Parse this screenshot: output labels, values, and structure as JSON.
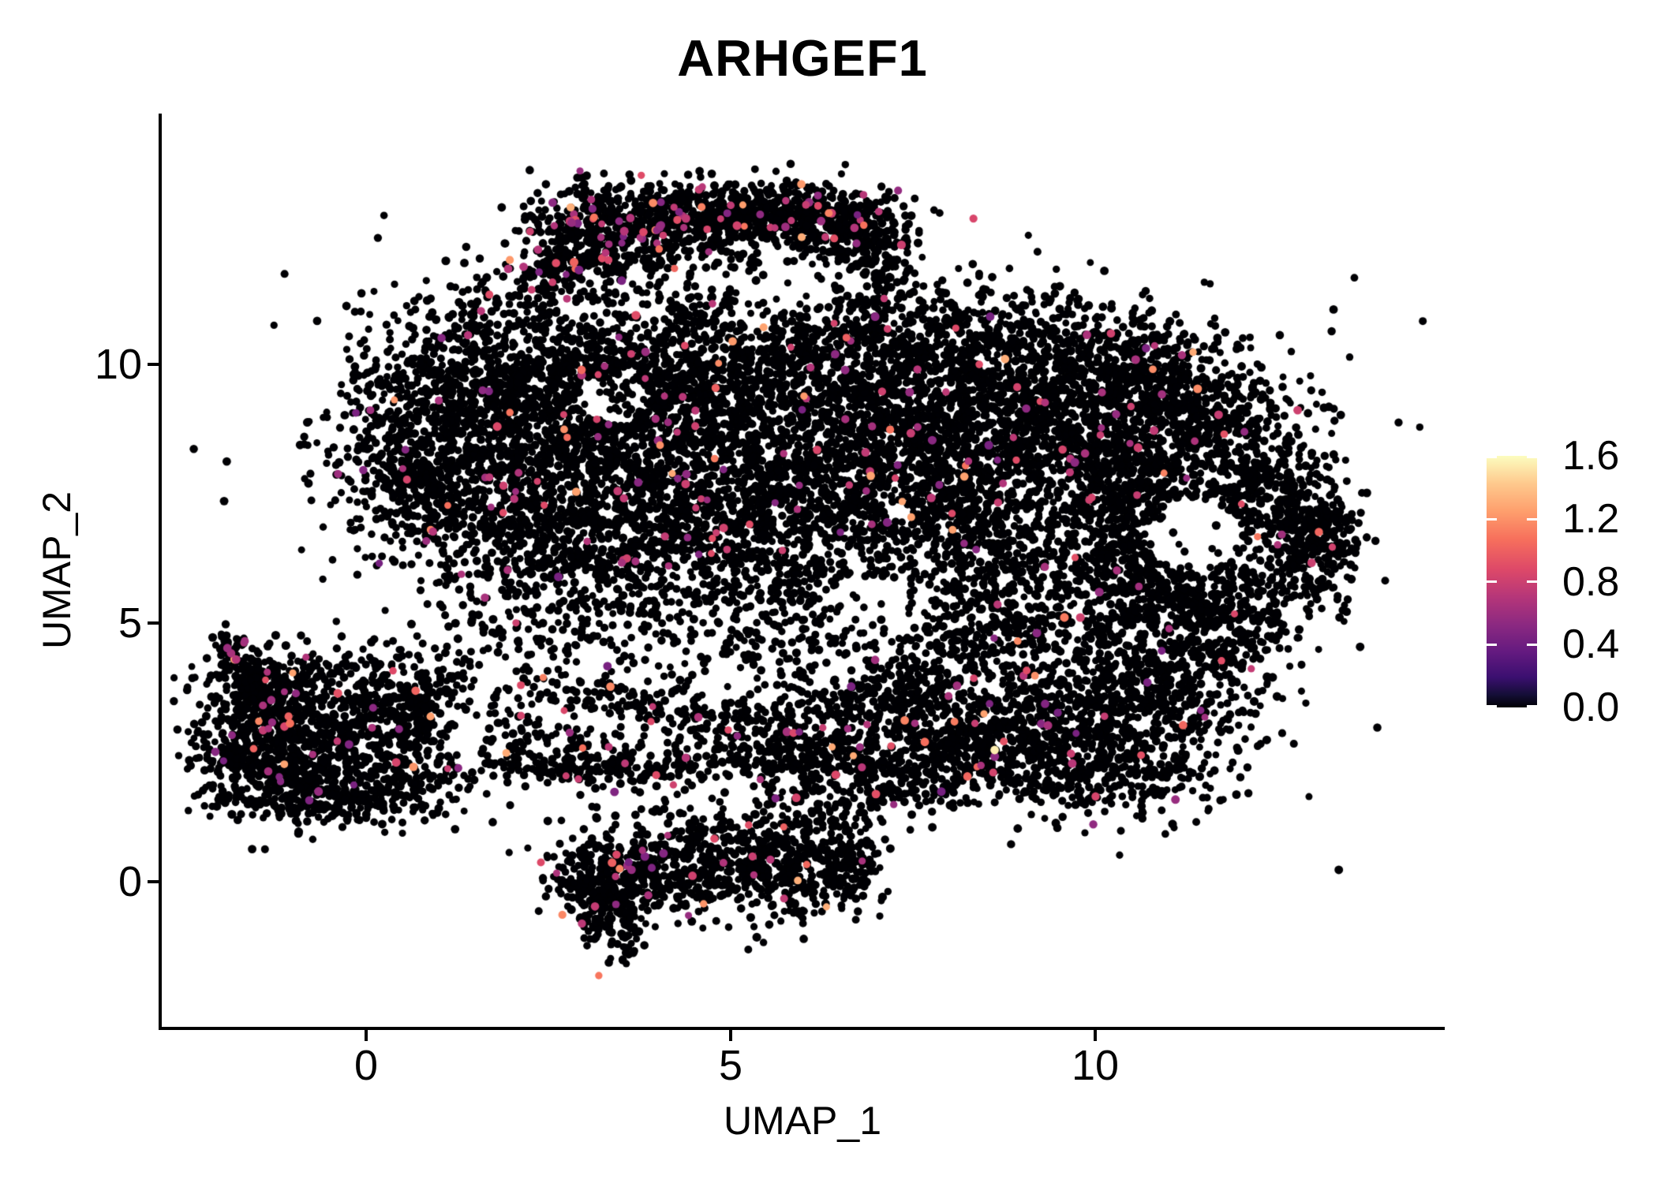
{
  "figure": {
    "title": "ARHGEF1",
    "x_axis": {
      "label": "UMAP_1",
      "ticks": [
        "0",
        "5",
        "10"
      ]
    },
    "y_axis": {
      "label": "UMAP_2",
      "ticks": [
        "10",
        "5",
        "0"
      ]
    },
    "colorbar": {
      "labels": [
        "1.6",
        "1.2",
        "0.8",
        "0.4",
        "0.0"
      ]
    }
  },
  "colors": {
    "background": "#FFFFFF",
    "axis": "#000000",
    "point_zero_expression": "#000004",
    "point_mid_expression": "#A8327E",
    "point_high_expression": "#F7705C",
    "point_max_expression": "#FCFDBF"
  },
  "chart_data": {
    "type": "scatter",
    "title": "ARHGEF1",
    "xlabel": "UMAP_1",
    "ylabel": "UMAP_2",
    "x_range": [
      -2.8,
      14.77
    ],
    "y_range": [
      -2.8,
      14.85
    ],
    "x_ticks": [
      0,
      5,
      10
    ],
    "y_ticks": [
      0,
      5,
      10
    ],
    "grid": false,
    "legend_position": "right",
    "color_scale": {
      "name": "magma",
      "domain": [
        0.0,
        1.6
      ],
      "ticks": [
        0.0,
        0.4,
        0.8,
        1.2,
        1.6
      ],
      "stops": [
        [
          0.0,
          "#000004"
        ],
        [
          0.1,
          "#140E36"
        ],
        [
          0.2,
          "#3B0F70"
        ],
        [
          0.3,
          "#641A80"
        ],
        [
          0.4,
          "#8C2981"
        ],
        [
          0.5,
          "#B63679"
        ],
        [
          0.6,
          "#DE4968"
        ],
        [
          0.7,
          "#F7705C"
        ],
        [
          0.8,
          "#FE9F6D"
        ],
        [
          0.9,
          "#FEC98D"
        ],
        [
          1.0,
          "#FCFDBF"
        ]
      ]
    },
    "point_radius_px": 5,
    "seed": 1234567,
    "colored_value_model": {
      "magenta_range": [
        0.55,
        1.0
      ],
      "orange_range": [
        1.05,
        1.35
      ],
      "orange_share": 0.18
    },
    "clusters": [
      {
        "cx": 2.55,
        "cy": 11.85,
        "sx": 0.3,
        "sy": 0.45,
        "rot": -35,
        "n": 130,
        "colored_frac": 0.1
      },
      {
        "cx": 3.2,
        "cy": 12.4,
        "sx": 0.55,
        "sy": 0.35,
        "rot": -25,
        "n": 260,
        "colored_frac": 0.09
      },
      {
        "cx": 4.3,
        "cy": 12.85,
        "sx": 0.75,
        "sy": 0.32,
        "rot": -8,
        "n": 380,
        "colored_frac": 0.07
      },
      {
        "cx": 5.6,
        "cy": 12.95,
        "sx": 0.75,
        "sy": 0.3,
        "rot": 0,
        "n": 380,
        "colored_frac": 0.05
      },
      {
        "cx": 6.5,
        "cy": 12.6,
        "sx": 0.45,
        "sy": 0.35,
        "rot": 25,
        "n": 220,
        "colored_frac": 0.03
      },
      {
        "cx": 6.95,
        "cy": 12.0,
        "sx": 0.3,
        "sy": 0.45,
        "rot": 0,
        "n": 110,
        "colored_frac": 0.02
      },
      {
        "cx": 4.6,
        "cy": 11.9,
        "sx": 1.3,
        "sy": 0.5,
        "rot": 0,
        "n": 120,
        "colored_frac": 0.02
      },
      {
        "cx": 2.2,
        "cy": 10.1,
        "sx": 1.1,
        "sy": 0.75,
        "rot": -20,
        "n": 520,
        "colored_frac": 0.02
      },
      {
        "cx": 1.3,
        "cy": 9.0,
        "sx": 0.9,
        "sy": 0.8,
        "rot": 0,
        "n": 520,
        "colored_frac": 0.02
      },
      {
        "cx": 1.6,
        "cy": 7.6,
        "sx": 1.05,
        "sy": 0.8,
        "rot": 0,
        "n": 520,
        "colored_frac": 0.02
      },
      {
        "cx": 2.9,
        "cy": 8.6,
        "sx": 0.9,
        "sy": 1.0,
        "rot": 0,
        "n": 480,
        "colored_frac": 0.015
      },
      {
        "cx": 2.6,
        "cy": 6.4,
        "sx": 1.0,
        "sy": 0.7,
        "rot": 10,
        "n": 380,
        "colored_frac": 0.015
      },
      {
        "cx": 0.6,
        "cy": 8.0,
        "sx": 0.35,
        "sy": 0.9,
        "rot": 15,
        "n": 150,
        "colored_frac": 0.03
      },
      {
        "cx": 4.4,
        "cy": 9.9,
        "sx": 1.0,
        "sy": 0.75,
        "rot": 0,
        "n": 450,
        "colored_frac": 0.02
      },
      {
        "cx": 4.2,
        "cy": 8.4,
        "sx": 1.0,
        "sy": 0.9,
        "rot": 0,
        "n": 520,
        "colored_frac": 0.02
      },
      {
        "cx": 4.6,
        "cy": 6.7,
        "sx": 1.1,
        "sy": 0.8,
        "rot": 0,
        "n": 420,
        "colored_frac": 0.015
      },
      {
        "cx": 5.7,
        "cy": 9.2,
        "sx": 0.9,
        "sy": 1.0,
        "rot": 0,
        "n": 450,
        "colored_frac": 0.015
      },
      {
        "cx": 5.9,
        "cy": 7.6,
        "sx": 0.9,
        "sy": 0.8,
        "rot": 0,
        "n": 320,
        "colored_frac": 0.02
      },
      {
        "cx": 5.4,
        "cy": 5.6,
        "sx": 1.2,
        "sy": 0.6,
        "rot": 0,
        "n": 260,
        "colored_frac": 0.02
      },
      {
        "cx": 6.8,
        "cy": 10.6,
        "sx": 1.2,
        "sy": 0.6,
        "rot": 0,
        "n": 300,
        "colored_frac": 0.02
      },
      {
        "cx": 6.9,
        "cy": 8.3,
        "sx": 0.8,
        "sy": 1.2,
        "rot": 0,
        "n": 380,
        "colored_frac": 0.02
      },
      {
        "cx": 8.3,
        "cy": 8.8,
        "sx": 1.2,
        "sy": 1.0,
        "rot": 0,
        "n": 900,
        "colored_frac": 0.03
      },
      {
        "cx": 9.7,
        "cy": 8.6,
        "sx": 1.0,
        "sy": 0.9,
        "rot": 0,
        "n": 700,
        "colored_frac": 0.02
      },
      {
        "cx": 8.6,
        "cy": 10.4,
        "sx": 1.4,
        "sy": 0.6,
        "rot": 0,
        "n": 420,
        "colored_frac": 0.015
      },
      {
        "cx": 10.4,
        "cy": 9.8,
        "sx": 0.9,
        "sy": 0.55,
        "rot": -15,
        "n": 300,
        "colored_frac": 0.02
      },
      {
        "cx": 11.5,
        "cy": 9.2,
        "sx": 0.8,
        "sy": 0.6,
        "rot": -30,
        "n": 300,
        "colored_frac": 0.015
      },
      {
        "cx": 8.0,
        "cy": 6.8,
        "sx": 0.8,
        "sy": 0.8,
        "rot": 0,
        "n": 260,
        "colored_frac": 0.02
      },
      {
        "cx": 9.3,
        "cy": 6.3,
        "sx": 0.9,
        "sy": 0.8,
        "rot": 0,
        "n": 300,
        "colored_frac": 0.015
      },
      {
        "cx": 9.0,
        "cy": 4.9,
        "sx": 1.1,
        "sy": 0.5,
        "rot": 0,
        "n": 220,
        "colored_frac": 0.02
      },
      {
        "cx": 10.55,
        "cy": 7.3,
        "sx": 0.45,
        "sy": 0.7,
        "rot": 20,
        "n": 200,
        "colored_frac": 0.01
      },
      {
        "cx": 11.4,
        "cy": 8.0,
        "sx": 0.7,
        "sy": 0.4,
        "rot": 0,
        "n": 200,
        "colored_frac": 0.01
      },
      {
        "cx": 12.45,
        "cy": 7.5,
        "sx": 0.5,
        "sy": 0.5,
        "rot": 0,
        "n": 200,
        "colored_frac": 0.01
      },
      {
        "cx": 12.9,
        "cy": 6.6,
        "sx": 0.35,
        "sy": 0.6,
        "rot": 0,
        "n": 170,
        "colored_frac": 0.02
      },
      {
        "cx": 12.2,
        "cy": 5.7,
        "sx": 0.6,
        "sy": 0.45,
        "rot": 20,
        "n": 180,
        "colored_frac": 0.01
      },
      {
        "cx": 11.0,
        "cy": 5.4,
        "sx": 0.7,
        "sy": 0.45,
        "rot": 0,
        "n": 200,
        "colored_frac": 0.01
      },
      {
        "cx": 10.3,
        "cy": 6.3,
        "sx": 0.4,
        "sy": 0.5,
        "rot": 0,
        "n": 130,
        "colored_frac": 0.01
      },
      {
        "cx": 11.35,
        "cy": 6.7,
        "sx": 0.55,
        "sy": 0.6,
        "rot": 0,
        "n": 40,
        "colored_frac": 0
      },
      {
        "cx": 13.25,
        "cy": 6.9,
        "sx": 0.18,
        "sy": 0.45,
        "rot": 0,
        "n": 60,
        "colored_frac": 0.05
      },
      {
        "cx": 9.4,
        "cy": 3.2,
        "sx": 1.0,
        "sy": 0.8,
        "rot": 0,
        "n": 650,
        "colored_frac": 0.03
      },
      {
        "cx": 10.8,
        "cy": 3.6,
        "sx": 0.7,
        "sy": 0.8,
        "rot": 0,
        "n": 350,
        "colored_frac": 0.02
      },
      {
        "cx": 8.3,
        "cy": 2.4,
        "sx": 0.8,
        "sy": 0.5,
        "rot": 15,
        "n": 300,
        "colored_frac": 0.03
      },
      {
        "cx": 10.1,
        "cy": 2.0,
        "sx": 0.8,
        "sy": 0.4,
        "rot": -10,
        "n": 220,
        "colored_frac": 0.02
      },
      {
        "cx": 11.6,
        "cy": 4.6,
        "sx": 0.6,
        "sy": 0.7,
        "rot": 0,
        "n": 220,
        "colored_frac": 0.01
      },
      {
        "cx": 7.6,
        "cy": 3.4,
        "sx": 0.6,
        "sy": 0.6,
        "rot": 0,
        "n": 200,
        "colored_frac": 0.03
      },
      {
        "cx": 4.0,
        "cy": 3.3,
        "sx": 1.2,
        "sy": 0.25,
        "rot": -12,
        "n": 200,
        "colored_frac": 0.04
      },
      {
        "cx": 2.6,
        "cy": 2.6,
        "sx": 0.8,
        "sy": 0.3,
        "rot": -20,
        "n": 150,
        "colored_frac": 0.03
      },
      {
        "cx": 3.3,
        "cy": 2.15,
        "sx": 1.0,
        "sy": 0.12,
        "rot": 0,
        "n": 130,
        "colored_frac": 0.02
      },
      {
        "cx": 5.3,
        "cy": 2.5,
        "sx": 1.3,
        "sy": 0.3,
        "rot": 8,
        "n": 220,
        "colored_frac": 0.04
      },
      {
        "cx": 6.6,
        "cy": 2.2,
        "sx": 0.8,
        "sy": 0.35,
        "rot": -15,
        "n": 200,
        "colored_frac": 0.03
      },
      {
        "cx": 6.0,
        "cy": 3.3,
        "sx": 0.8,
        "sy": 0.3,
        "rot": 10,
        "n": 130,
        "colored_frac": 0.03
      },
      {
        "cx": 4.8,
        "cy": 4.3,
        "sx": 1.6,
        "sy": 0.6,
        "rot": 0,
        "n": 130,
        "colored_frac": 0.02
      },
      {
        "cx": 2.3,
        "cy": 4.9,
        "sx": 0.7,
        "sy": 0.5,
        "rot": 0,
        "n": 90,
        "colored_frac": 0.02
      },
      {
        "cx": 7.2,
        "cy": 4.6,
        "sx": 0.7,
        "sy": 0.5,
        "rot": 0,
        "n": 110,
        "colored_frac": 0.01
      },
      {
        "cx": -0.7,
        "cy": 2.9,
        "sx": 0.85,
        "sy": 0.75,
        "rot": 0,
        "n": 600,
        "colored_frac": 0.03
      },
      {
        "cx": -1.45,
        "cy": 2.4,
        "sx": 0.45,
        "sy": 0.55,
        "rot": 0,
        "n": 250,
        "colored_frac": 0.03
      },
      {
        "cx": -1.3,
        "cy": 3.6,
        "sx": 0.4,
        "sy": 0.4,
        "rot": 30,
        "n": 160,
        "colored_frac": 0.04
      },
      {
        "cx": -1.55,
        "cy": 3.95,
        "sx": 0.18,
        "sy": 0.35,
        "rot": 20,
        "n": 60,
        "colored_frac": 0.02
      },
      {
        "cx": -1.82,
        "cy": 4.4,
        "sx": 0.13,
        "sy": 0.3,
        "rot": 15,
        "n": 40,
        "colored_frac": 0.12
      },
      {
        "cx": 0.3,
        "cy": 2.2,
        "sx": 0.7,
        "sy": 0.5,
        "rot": 0,
        "n": 250,
        "colored_frac": 0.02
      },
      {
        "cx": 0.65,
        "cy": 3.4,
        "sx": 0.45,
        "sy": 0.4,
        "rot": 0,
        "n": 160,
        "colored_frac": 0.02
      },
      {
        "cx": -0.5,
        "cy": 1.55,
        "sx": 0.8,
        "sy": 0.22,
        "rot": 0,
        "n": 140,
        "colored_frac": 0.02
      },
      {
        "cx": 0.0,
        "cy": 4.1,
        "sx": 0.9,
        "sy": 0.35,
        "rot": 0,
        "n": 70,
        "colored_frac": 0.02
      },
      {
        "cx": 3.3,
        "cy": -0.5,
        "sx": 0.25,
        "sy": 0.5,
        "rot": 15,
        "n": 230,
        "colored_frac": 0.05
      },
      {
        "cx": 3.9,
        "cy": 0.1,
        "sx": 0.5,
        "sy": 0.35,
        "rot": -20,
        "n": 200,
        "colored_frac": 0.04
      },
      {
        "cx": 4.8,
        "cy": 0.35,
        "sx": 0.6,
        "sy": 0.35,
        "rot": 0,
        "n": 200,
        "colored_frac": 0.03
      },
      {
        "cx": 5.8,
        "cy": 0.15,
        "sx": 0.6,
        "sy": 0.45,
        "rot": 0,
        "n": 280,
        "colored_frac": 0.03
      },
      {
        "cx": 6.5,
        "cy": 0.6,
        "sx": 0.3,
        "sy": 0.5,
        "rot": 20,
        "n": 120,
        "colored_frac": 0.02
      },
      {
        "cx": 4.7,
        "cy": 1.1,
        "sx": 1.1,
        "sy": 0.3,
        "rot": 0,
        "n": 110,
        "colored_frac": 0.03
      },
      {
        "cx": 2.85,
        "cy": 0.1,
        "sx": 0.25,
        "sy": 0.3,
        "rot": 0,
        "n": 60,
        "colored_frac": 0.02
      },
      {
        "cx": 6.1,
        "cy": 1.6,
        "sx": 0.5,
        "sy": 0.4,
        "rot": 0,
        "n": 50,
        "colored_frac": 0.02
      },
      {
        "cx": 6.0,
        "cy": 8.5,
        "sx": 3.5,
        "sy": 2.5,
        "rot": 0,
        "n": 250,
        "colored_frac": 0.02
      },
      {
        "cx": 9.0,
        "cy": 6.0,
        "sx": 2.5,
        "sy": 2.0,
        "rot": 0,
        "n": 150,
        "colored_frac": 0.01
      }
    ],
    "holes": [
      {
        "cx": 11.35,
        "cy": 6.7,
        "rx": 0.62,
        "ry": 0.72,
        "keep": 0.12
      },
      {
        "cx": 3.4,
        "cy": 9.3,
        "rx": 0.5,
        "ry": 0.45,
        "keep": 0.2
      },
      {
        "cx": 5.9,
        "cy": 11.55,
        "rx": 1.1,
        "ry": 0.45,
        "keep": 0.3
      },
      {
        "cx": 7.0,
        "cy": 5.3,
        "rx": 0.8,
        "ry": 0.6,
        "keep": 0.3
      }
    ],
    "highlight_points": [
      {
        "x": 8.62,
        "y": 2.55,
        "value": 1.55
      },
      {
        "x": 1.95,
        "y": 11.85,
        "value": 0.8
      },
      {
        "x": -1.85,
        "y": 4.42,
        "value": 0.75
      },
      {
        "x": -1.78,
        "y": 4.3,
        "value": 0.8
      },
      {
        "x": -1.9,
        "y": 4.52,
        "value": 0.7
      }
    ]
  }
}
